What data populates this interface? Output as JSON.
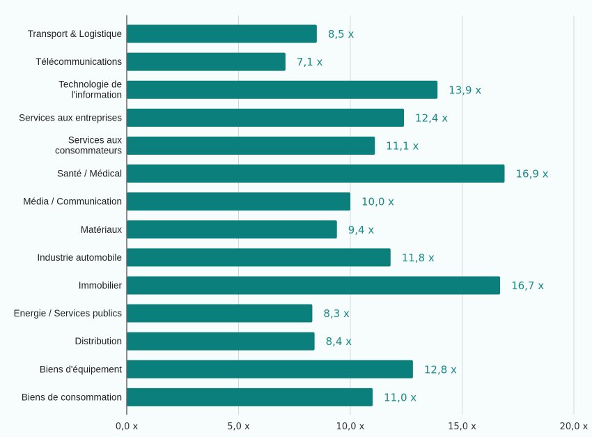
{
  "chart_data": {
    "type": "bar",
    "orientation": "horizontal",
    "categories": [
      "Transport & Logistique",
      "Télécommunications",
      "Technologie de l'information",
      "Services aux entreprises",
      "Services aux consommateurs",
      "Santé / Médical",
      "Média / Communication",
      "Matériaux",
      "Industrie automobile",
      "Immobilier",
      "Energie / Services publics",
      "Distribution",
      "Biens d'équipement",
      "Biens de consommation"
    ],
    "category_lines": [
      [
        "Transport & Logistique"
      ],
      [
        "Télécommunications"
      ],
      [
        "Technologie de",
        "l'information"
      ],
      [
        "Services aux entreprises"
      ],
      [
        "Services aux",
        "consommateurs"
      ],
      [
        "Santé / Médical"
      ],
      [
        "Média / Communication"
      ],
      [
        "Matériaux"
      ],
      [
        "Industrie automobile"
      ],
      [
        "Immobilier"
      ],
      [
        "Energie / Services publics"
      ],
      [
        "Distribution"
      ],
      [
        "Biens d'équipement"
      ],
      [
        "Biens de consommation"
      ]
    ],
    "values": [
      8.5,
      7.1,
      13.9,
      12.4,
      11.1,
      16.9,
      10.0,
      9.4,
      11.8,
      16.7,
      8.3,
      8.4,
      12.8,
      11.0
    ],
    "data_labels": [
      "8,5 x",
      "7,1 x",
      "13,9 x",
      "12,4 x",
      "11,1 x",
      "16,9 x",
      "10,0 x",
      "9,4 x",
      "11,8 x",
      "16,7 x",
      "8,3 x",
      "8,4 x",
      "12,8 x",
      "11,0 x"
    ],
    "xlim": [
      0,
      20
    ],
    "xticks": [
      0,
      5,
      10,
      15,
      20
    ],
    "xtick_labels": [
      "0,0 x",
      "5,0 x",
      "10,0 x",
      "15,0 x",
      "20,0 x"
    ],
    "grid": true,
    "title": "",
    "xlabel": "",
    "ylabel": "",
    "colors": {
      "bar": "#0b7f7b",
      "label": "#1a8a85",
      "grid": "#d3d7d8",
      "axis": "#666666"
    }
  }
}
